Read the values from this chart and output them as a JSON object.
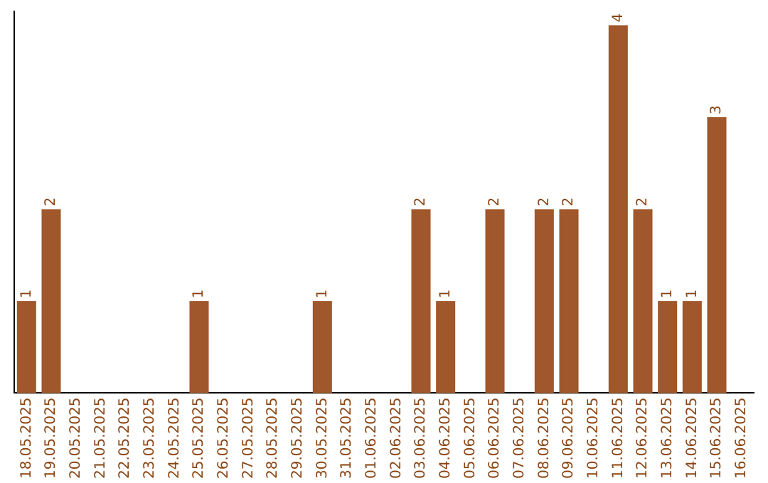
{
  "chart_data": {
    "type": "bar",
    "categories": [
      "18.05.2025",
      "19.05.2025",
      "20.05.2025",
      "21.05.2025",
      "22.05.2025",
      "23.05.2025",
      "24.05.2025",
      "25.05.2025",
      "26.05.2025",
      "27.05.2025",
      "28.05.2025",
      "29.05.2025",
      "30.05.2025",
      "31.05.2025",
      "01.06.2025",
      "02.06.2025",
      "03.06.2025",
      "04.06.2025",
      "05.06.2025",
      "06.06.2025",
      "07.06.2025",
      "08.06.2025",
      "09.06.2025",
      "10.06.2025",
      "11.06.2025",
      "12.06.2025",
      "13.06.2025",
      "14.06.2025",
      "15.06.2025",
      "16.06.2025"
    ],
    "values": [
      1,
      2,
      0,
      0,
      0,
      0,
      0,
      1,
      0,
      0,
      0,
      0,
      1,
      0,
      0,
      0,
      2,
      1,
      0,
      2,
      0,
      2,
      2,
      0,
      4,
      2,
      1,
      1,
      3,
      0
    ],
    "value_labels": [
      "1",
      "2",
      null,
      null,
      null,
      null,
      null,
      "1",
      null,
      null,
      null,
      null,
      "1",
      null,
      null,
      null,
      "2",
      "1",
      null,
      "2",
      null,
      "2",
      "2",
      null,
      "4",
      "2",
      "1",
      "1",
      "3",
      null
    ],
    "color": "#a0572b",
    "ylim": [
      0,
      4.15
    ],
    "grid": false,
    "legend": false
  }
}
